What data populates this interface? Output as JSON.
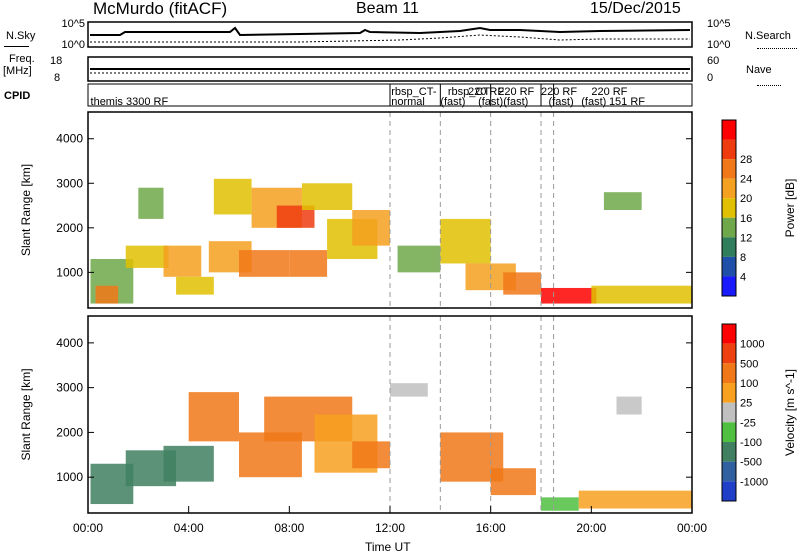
{
  "header": {
    "radar": "McMurdo (fitACF)",
    "beam": "Beam 11",
    "date": "15/Dec/2015"
  },
  "panel_labels": {
    "nsky": "N.Sky",
    "nsearch": "N.Search",
    "freq_line1": "Freq.",
    "freq_line2": "[MHz]",
    "nave": "Nave",
    "cpid": "CPID"
  },
  "noise_axis": {
    "left_top": "10^5",
    "left_bottom": "10^0",
    "right_top": "10^5",
    "right_bottom": "10^0"
  },
  "freq_axis": {
    "left_top": "18",
    "left_bottom": "8",
    "right_top": "60",
    "right_bottom": "0"
  },
  "cpid_labels": [
    {
      "text": "themis 3300 RF",
      "x_hours": 0.1,
      "row": 1
    },
    {
      "text": "rbsp_CT-",
      "x_hours": 12.05,
      "row": 0
    },
    {
      "text": "normal",
      "x_hours": 12.05,
      "row": 1
    },
    {
      "text": "rbsp_CT",
      "x_hours": 14.3,
      "row": 0
    },
    {
      "text": "(fast)",
      "x_hours": 14.0,
      "row": 1
    },
    {
      "text": "220 RF",
      "x_hours": 15.1,
      "row": 0
    },
    {
      "text": "(fast)",
      "x_hours": 15.5,
      "row": 1
    },
    {
      "text": "220 RF",
      "x_hours": 16.3,
      "row": 0
    },
    {
      "text": "(fast)",
      "x_hours": 16.5,
      "row": 1
    },
    {
      "text": "220 RF",
      "x_hours": 18.0,
      "row": 0
    },
    {
      "text": "(fast)",
      "x_hours": 18.3,
      "row": 1
    },
    {
      "text": "220 RF",
      "x_hours": 20.0,
      "row": 0
    },
    {
      "text": "(fast)",
      "x_hours": 19.6,
      "row": 1
    },
    {
      "text": "151 RF",
      "x_hours": 20.7,
      "row": 1
    }
  ],
  "chart_data": [
    {
      "type": "heatmap",
      "name": "power",
      "ylabel": "Slant Range [km]",
      "xlim_hours": [
        0,
        24
      ],
      "ylim": [
        200,
        4600
      ],
      "yticks": [
        1000,
        2000,
        3000,
        4000
      ],
      "colorbar": {
        "label": "Power [dB]",
        "ticks": [
          "4",
          "8",
          "12",
          "16",
          "20",
          "24",
          "28"
        ],
        "colors": [
          "#1a1aff",
          "#1f4fa8",
          "#2f7d5a",
          "#6fa84a",
          "#e0c000",
          "#f4a020",
          "#f07818",
          "#ee3c10",
          "#ff0000"
        ]
      },
      "regions": [
        {
          "t0": 0.1,
          "t1": 1.8,
          "r0": 300,
          "r1": 1300,
          "level": 3
        },
        {
          "t0": 0.3,
          "t1": 1.2,
          "r0": 300,
          "r1": 700,
          "level": 6
        },
        {
          "t0": 1.5,
          "t1": 3.2,
          "r0": 1100,
          "r1": 1600,
          "level": 4
        },
        {
          "t0": 2.0,
          "t1": 3.0,
          "r0": 2200,
          "r1": 2900,
          "level": 3
        },
        {
          "t0": 3.0,
          "t1": 4.5,
          "r0": 900,
          "r1": 1600,
          "level": 5
        },
        {
          "t0": 3.5,
          "t1": 5.0,
          "r0": 500,
          "r1": 900,
          "level": 4
        },
        {
          "t0": 4.8,
          "t1": 6.5,
          "r0": 1000,
          "r1": 1700,
          "level": 5
        },
        {
          "t0": 5.0,
          "t1": 6.5,
          "r0": 2300,
          "r1": 3100,
          "level": 4
        },
        {
          "t0": 6.0,
          "t1": 8.0,
          "r0": 900,
          "r1": 1500,
          "level": 6
        },
        {
          "t0": 6.5,
          "t1": 8.5,
          "r0": 2000,
          "r1": 2900,
          "level": 5
        },
        {
          "t0": 7.5,
          "t1": 9.0,
          "r0": 2000,
          "r1": 2500,
          "level": 7
        },
        {
          "t0": 8.0,
          "t1": 9.5,
          "r0": 900,
          "r1": 1500,
          "level": 6
        },
        {
          "t0": 8.5,
          "t1": 10.5,
          "r0": 2400,
          "r1": 3000,
          "level": 4
        },
        {
          "t0": 9.5,
          "t1": 11.5,
          "r0": 1300,
          "r1": 2200,
          "level": 4
        },
        {
          "t0": 10.5,
          "t1": 12.0,
          "r0": 1600,
          "r1": 2400,
          "level": 5
        },
        {
          "t0": 12.3,
          "t1": 14.0,
          "r0": 1000,
          "r1": 1600,
          "level": 3
        },
        {
          "t0": 14.0,
          "t1": 16.0,
          "r0": 1200,
          "r1": 2200,
          "level": 4
        },
        {
          "t0": 15.0,
          "t1": 17.0,
          "r0": 600,
          "r1": 1200,
          "level": 5
        },
        {
          "t0": 16.5,
          "t1": 18.0,
          "r0": 500,
          "r1": 1000,
          "level": 6
        },
        {
          "t0": 18.0,
          "t1": 20.2,
          "r0": 300,
          "r1": 650,
          "level": 8
        },
        {
          "t0": 20.0,
          "t1": 24.0,
          "r0": 300,
          "r1": 700,
          "level": 4
        },
        {
          "t0": 20.5,
          "t1": 22.0,
          "r0": 2400,
          "r1": 2800,
          "level": 3
        }
      ]
    },
    {
      "type": "heatmap",
      "name": "velocity",
      "ylabel": "Slant Range [km]",
      "xlim_hours": [
        0,
        24
      ],
      "ylim": [
        200,
        4600
      ],
      "yticks": [
        1000,
        2000,
        3000,
        4000
      ],
      "colorbar": {
        "label": "Velocity [m s^-1]",
        "ticks": [
          "1000",
          "500",
          "100",
          "25",
          "-25",
          "-100",
          "-500",
          "-1000"
        ],
        "colors": [
          "#1f3fc8",
          "#3060a0",
          "#408060",
          "#50c040",
          "#c0c0c0",
          "#f8a020",
          "#f07818",
          "#ee4010",
          "#ff0000"
        ]
      },
      "regions": [
        {
          "t0": 0.1,
          "t1": 1.8,
          "r0": 400,
          "r1": 1300,
          "level": 2
        },
        {
          "t0": 1.5,
          "t1": 3.5,
          "r0": 800,
          "r1": 1600,
          "level": 2
        },
        {
          "t0": 3.0,
          "t1": 5.0,
          "r0": 900,
          "r1": 1700,
          "level": 2
        },
        {
          "t0": 4.0,
          "t1": 6.0,
          "r0": 1800,
          "r1": 2900,
          "level": 6
        },
        {
          "t0": 6.0,
          "t1": 8.5,
          "r0": 1000,
          "r1": 2000,
          "level": 6
        },
        {
          "t0": 7.0,
          "t1": 10.5,
          "r0": 1800,
          "r1": 2800,
          "level": 6
        },
        {
          "t0": 9.0,
          "t1": 11.5,
          "r0": 1100,
          "r1": 2400,
          "level": 5
        },
        {
          "t0": 10.5,
          "t1": 12.0,
          "r0": 1200,
          "r1": 1800,
          "level": 6
        },
        {
          "t0": 12.0,
          "t1": 13.5,
          "r0": 2800,
          "r1": 3100,
          "level": 4
        },
        {
          "t0": 14.0,
          "t1": 16.5,
          "r0": 900,
          "r1": 2000,
          "level": 6
        },
        {
          "t0": 16.0,
          "t1": 17.8,
          "r0": 600,
          "r1": 1200,
          "level": 6
        },
        {
          "t0": 18.0,
          "t1": 19.5,
          "r0": 250,
          "r1": 550,
          "level": 3
        },
        {
          "t0": 19.5,
          "t1": 24.0,
          "r0": 300,
          "r1": 700,
          "level": 5
        },
        {
          "t0": 21.0,
          "t1": 22.0,
          "r0": 2400,
          "r1": 2800,
          "level": 4
        }
      ]
    }
  ],
  "x_axis": {
    "ticks": [
      "00:00",
      "04:00",
      "08:00",
      "12:00",
      "16:00",
      "20:00",
      "00:00"
    ],
    "label": "Time UT"
  },
  "dashed_lines_hours": [
    12.0,
    14.0,
    16.0,
    18.0,
    18.5
  ]
}
